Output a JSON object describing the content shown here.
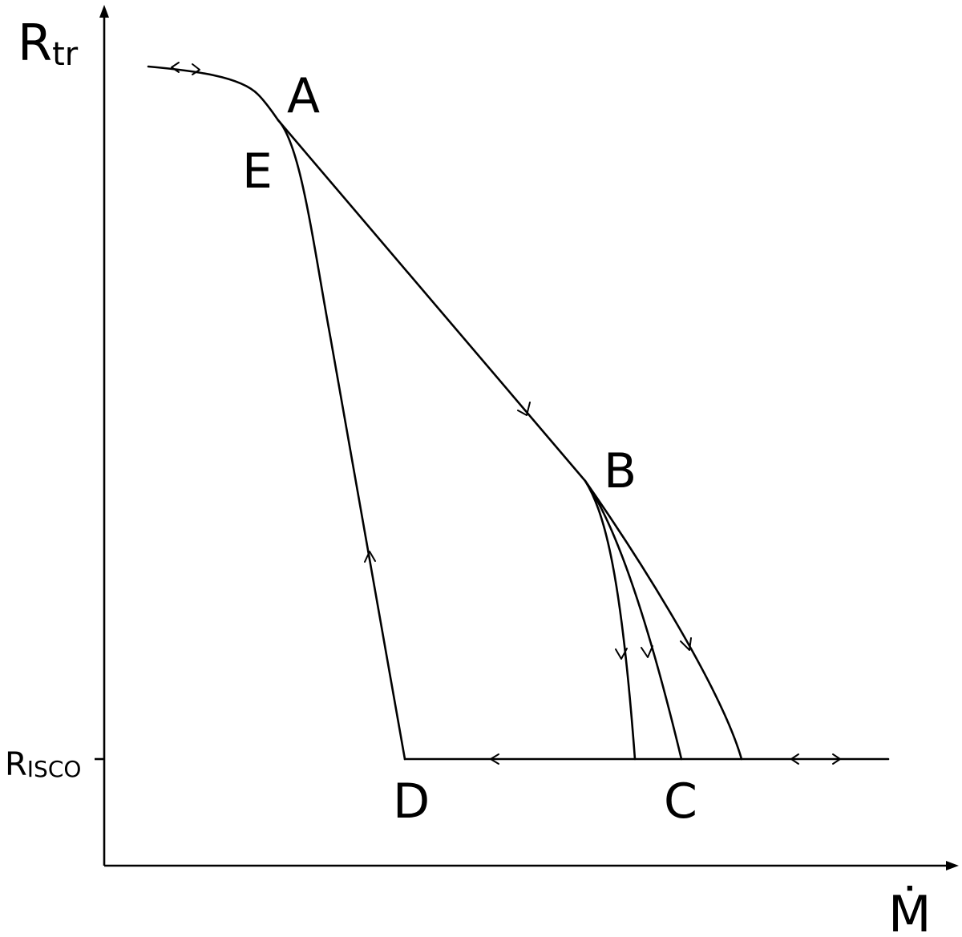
{
  "axes": {
    "y_label_main": "R",
    "y_label_sub": "tr",
    "x_label": "Ṁ",
    "y_tick_main": "R",
    "y_tick_sub": "ISCO"
  },
  "points": {
    "A": "A",
    "B": "B",
    "C": "C",
    "D": "D",
    "E": "E"
  }
}
